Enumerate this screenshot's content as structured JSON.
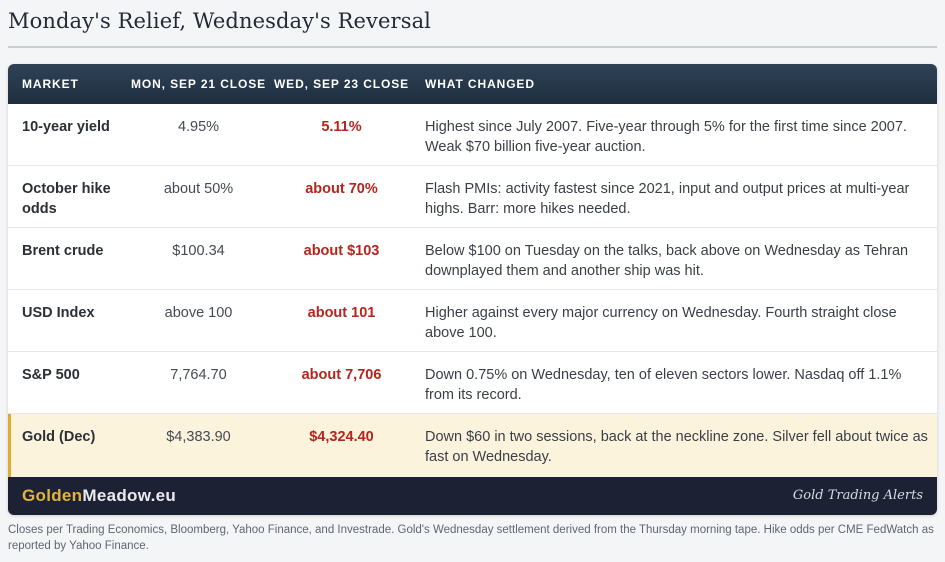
{
  "title": "Monday's Relief, Wednesday's Reversal",
  "table": {
    "headers": [
      "MARKET",
      "MON, SEP 21 CLOSE",
      "WED, SEP 23 CLOSE",
      "WHAT CHANGED"
    ],
    "rows": [
      {
        "market": "10-year yield",
        "mon": "4.95%",
        "wed": "5.11%",
        "what": "Highest since July 2007. Five-year through 5% for the first time since 2007. Weak $70 billion five-year auction."
      },
      {
        "market": "October hike odds",
        "mon": "about 50%",
        "wed": "about 70%",
        "what": "Flash PMIs: activity fastest since 2021, input and output prices at multi-year highs. Barr: more hikes needed."
      },
      {
        "market": "Brent crude",
        "mon": "$100.34",
        "wed": "about $103",
        "what": "Below $100 on Tuesday on the talks, back above on Wednesday as Tehran downplayed them and another ship was hit."
      },
      {
        "market": "USD Index",
        "mon": "above 100",
        "wed": "about 101",
        "what": "Higher against every major currency on Wednesday. Fourth straight close above 100."
      },
      {
        "market": "S&P 500",
        "mon": "7,764.70",
        "wed": "about 7,706",
        "what": "Down 0.75% on Wednesday, ten of eleven sectors lower. Nasdaq off 1.1% from its record."
      },
      {
        "market": "Gold (Dec)",
        "mon": "$4,383.90",
        "wed": "$4,324.40",
        "what": "Down $60 in two sessions, back at the neckline zone. Silver fell about twice as fast on Wednesday."
      }
    ]
  },
  "footer": {
    "brand_gold": "Golden",
    "brand_rest": "Meadow.eu",
    "tagline": "Gold Trading Alerts"
  },
  "source_note": "Closes per Trading Economics, Bloomberg, Yahoo Finance, and Investrade. Gold's Wednesday settlement derived from the Thursday morning tape. Hike odds per CME FedWatch as reported by Yahoo Finance.",
  "colors": {
    "header_bg": "#243447",
    "accent_red": "#b3261e",
    "highlight_row": "#fbf3dc",
    "gold": "#e0b43c",
    "footer_bg": "#1c2233"
  }
}
